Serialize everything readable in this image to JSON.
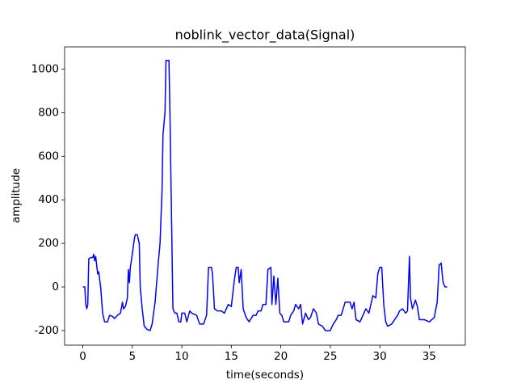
{
  "chart_data": {
    "type": "line",
    "title": "noblink_vector_data(Signal)",
    "xlabel": "time(seconds)",
    "ylabel": "amplitude",
    "color": "#0000ff",
    "x": [
      0,
      0.2,
      0.3,
      0.4,
      0.5,
      0.6,
      0.8,
      1.0,
      1.1,
      1.2,
      1.3,
      1.5,
      1.6,
      1.8,
      2.0,
      2.2,
      2.5,
      2.7,
      3.0,
      3.2,
      3.5,
      3.8,
      4.0,
      4.1,
      4.3,
      4.5,
      4.6,
      4.7,
      4.8,
      5.0,
      5.2,
      5.3,
      5.5,
      5.7,
      5.8,
      6.0,
      6.2,
      6.5,
      6.8,
      7.0,
      7.3,
      7.6,
      7.8,
      8.0,
      8.1,
      8.3,
      8.4,
      8.7,
      8.8,
      9.0,
      9.1,
      9.3,
      9.5,
      9.7,
      9.9,
      10.0,
      10.3,
      10.5,
      10.8,
      11.0,
      11.5,
      11.8,
      12.2,
      12.5,
      12.7,
      13.0,
      13.1,
      13.3,
      13.6,
      14.0,
      14.3,
      14.7,
      15.0,
      15.3,
      15.5,
      15.7,
      15.8,
      16.0,
      16.2,
      16.5,
      16.8,
      17.2,
      17.5,
      17.7,
      18.0,
      18.2,
      18.5,
      18.7,
      19.0,
      19.1,
      19.3,
      19.5,
      19.7,
      19.9,
      20.1,
      20.3,
      20.8,
      21.0,
      21.3,
      21.5,
      21.8,
      22.0,
      22.2,
      22.5,
      22.8,
      23.0,
      23.3,
      23.6,
      23.8,
      24.2,
      24.5,
      25.0,
      25.3,
      25.6,
      25.8,
      26.1,
      26.3,
      26.5,
      27.0,
      27.2,
      27.4,
      27.6,
      28.0,
      28.3,
      28.6,
      28.9,
      29.1,
      29.3,
      29.6,
      29.8,
      30.0,
      30.2,
      30.4,
      30.6,
      30.8,
      31.2,
      31.5,
      31.8,
      32.0,
      32.3,
      32.6,
      32.8,
      33.0,
      33.1,
      33.3,
      33.6,
      33.8,
      34.0,
      34.5,
      35.0,
      35.5,
      35.8,
      36.0,
      36.2,
      36.4,
      36.6,
      36.8
    ],
    "values": [
      0,
      0,
      -80,
      -100,
      -80,
      130,
      135,
      135,
      150,
      120,
      140,
      60,
      70,
      0,
      -120,
      -160,
      -160,
      -130,
      -135,
      -145,
      -130,
      -120,
      -70,
      -100,
      -90,
      -50,
      80,
      20,
      90,
      150,
      220,
      240,
      240,
      200,
      0,
      -100,
      -180,
      -195,
      -200,
      -170,
      -70,
      100,
      200,
      440,
      700,
      800,
      1040,
      1040,
      800,
      200,
      -100,
      -120,
      -120,
      -160,
      -160,
      -120,
      -120,
      -160,
      -110,
      -120,
      -130,
      -170,
      -170,
      -130,
      90,
      90,
      60,
      -100,
      -110,
      -110,
      -120,
      -80,
      -90,
      30,
      90,
      90,
      20,
      80,
      -100,
      -140,
      -160,
      -130,
      -130,
      -110,
      -110,
      -80,
      -80,
      80,
      90,
      -80,
      50,
      -80,
      40,
      -120,
      -130,
      -160,
      -160,
      -130,
      -110,
      -80,
      -100,
      -80,
      -170,
      -120,
      -150,
      -140,
      -100,
      -120,
      -170,
      -180,
      -200,
      -200,
      -170,
      -150,
      -130,
      -130,
      -100,
      -70,
      -70,
      -100,
      -70,
      -150,
      -160,
      -130,
      -100,
      -120,
      -80,
      -40,
      -50,
      60,
      90,
      90,
      -80,
      -160,
      -180,
      -170,
      -150,
      -130,
      -110,
      -100,
      -120,
      -110,
      140,
      -50,
      -100,
      -60,
      -90,
      -150,
      -150,
      -160,
      -140,
      -70,
      100,
      110,
      20,
      0,
      0
    ],
    "xlim": [
      -1.84,
      38.64
    ],
    "ylim": [
      -267,
      1102
    ],
    "xticks": [
      0,
      5,
      10,
      15,
      20,
      25,
      30,
      35
    ],
    "yticks": [
      -200,
      0,
      200,
      400,
      600,
      800,
      1000
    ]
  }
}
